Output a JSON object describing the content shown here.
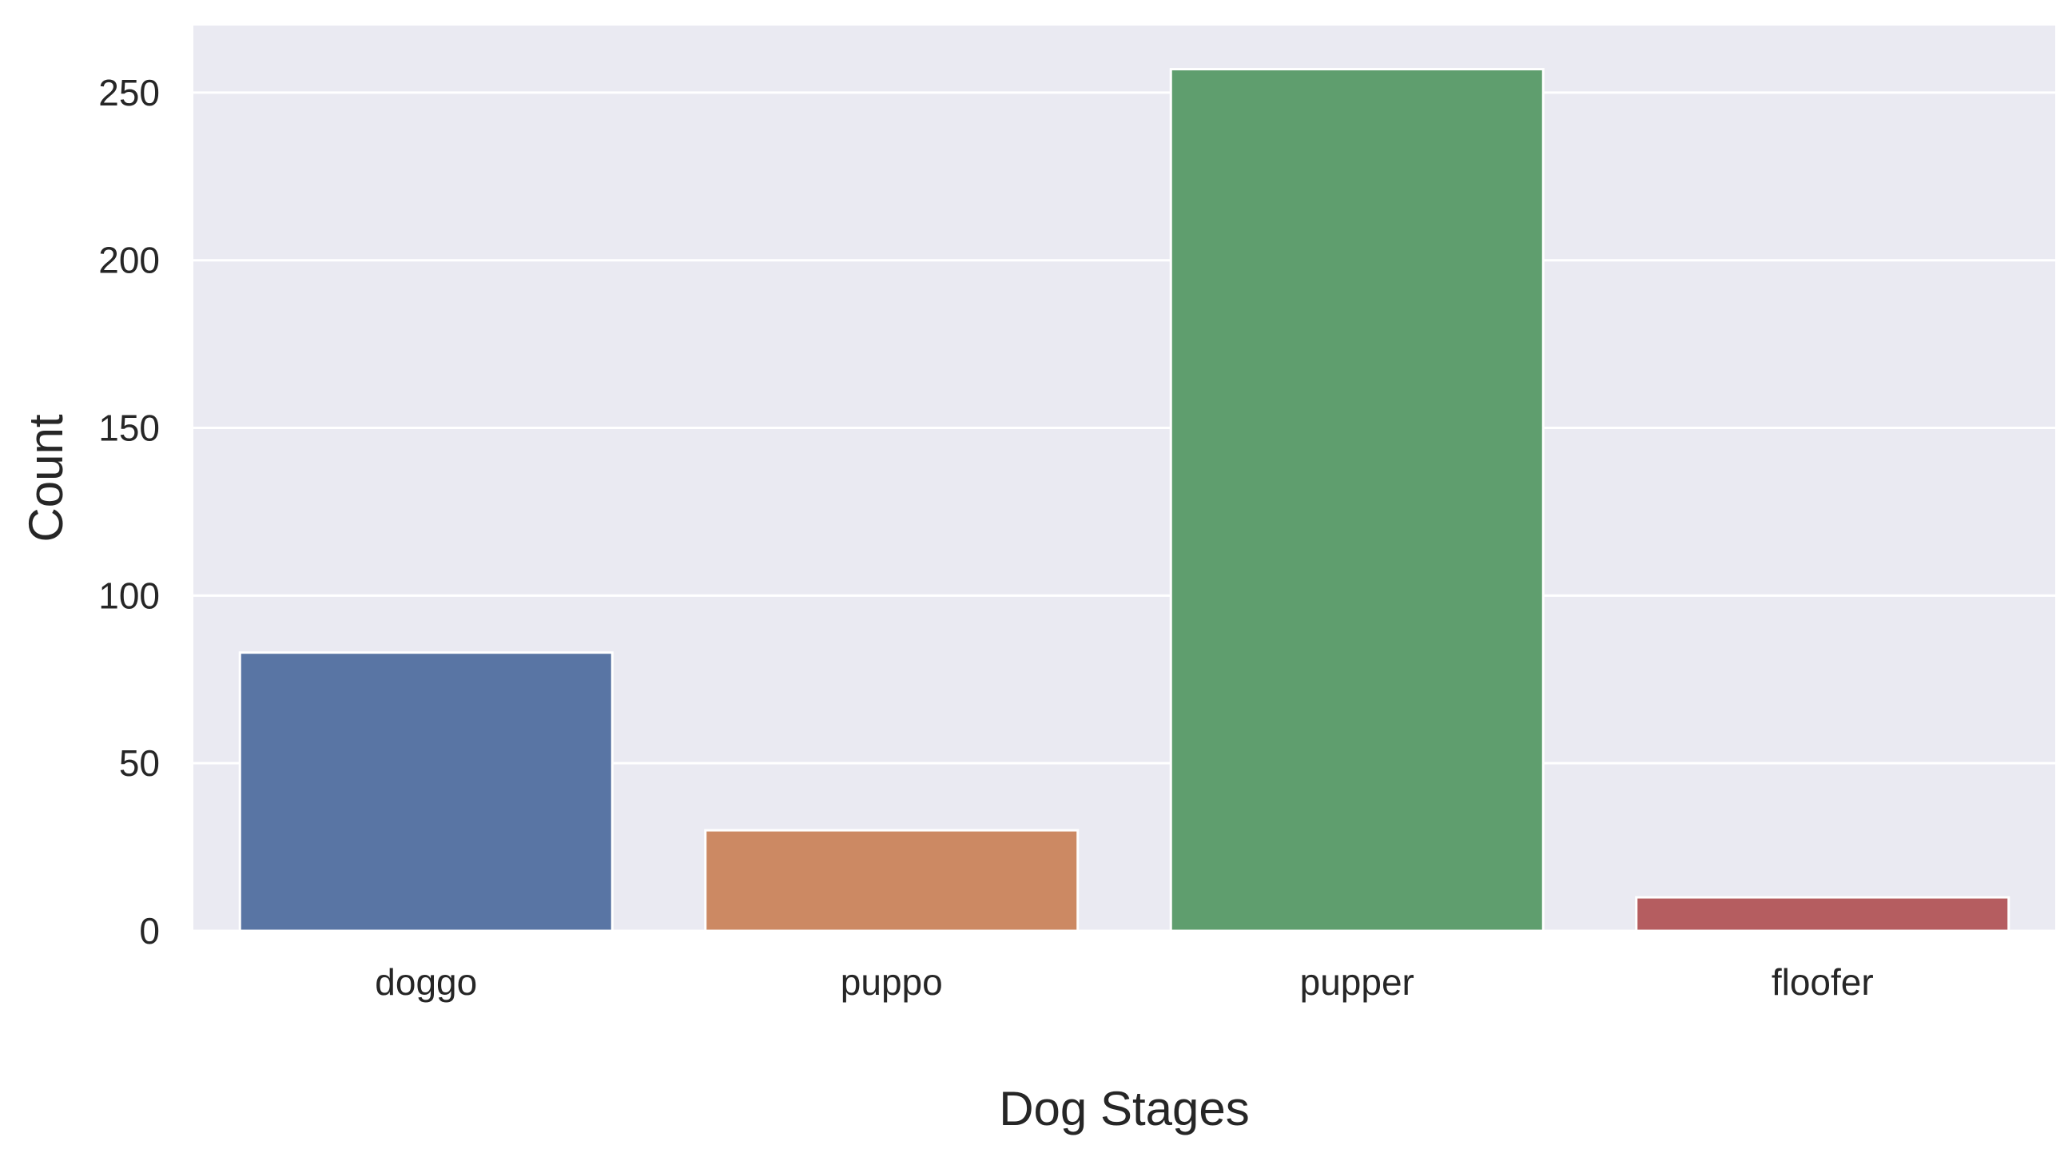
{
  "chart_data": {
    "type": "bar",
    "title": "",
    "xlabel": "Dog Stages",
    "ylabel": "Count",
    "categories": [
      "doggo",
      "puppo",
      "pupper",
      "floofer"
    ],
    "values": [
      83,
      30,
      257,
      10
    ],
    "colors": [
      "#5975a4",
      "#cc8963",
      "#5f9e6e",
      "#b55d60"
    ],
    "yticks": [
      0,
      50,
      100,
      150,
      200,
      250
    ],
    "ylim": [
      0,
      270
    ],
    "grid": true,
    "background": "#eaeaf2"
  }
}
